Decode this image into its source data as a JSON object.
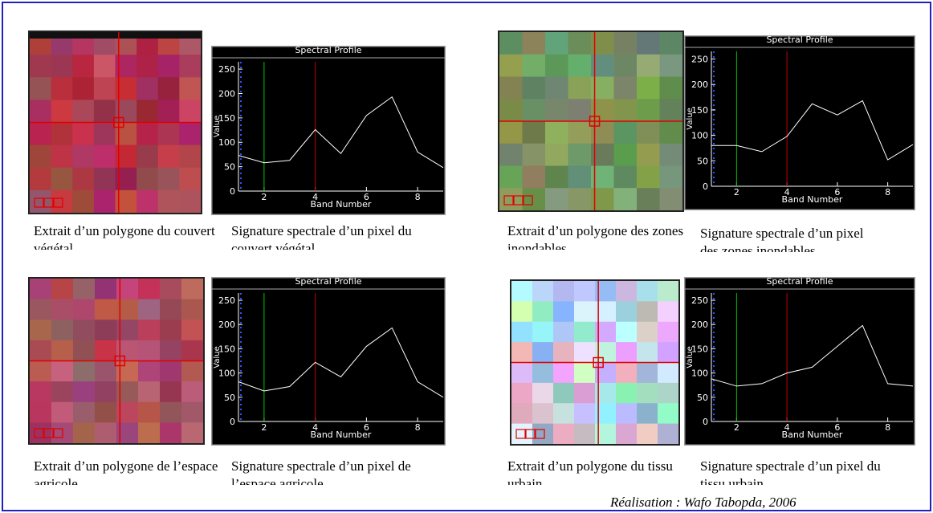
{
  "chart_data": [
    {
      "type": "line",
      "title": "Spectral Profile",
      "xlabel": "Band Number",
      "ylabel": "Value",
      "x": [
        1,
        2,
        3,
        4,
        5,
        6,
        7,
        8,
        9
      ],
      "series": [
        {
          "color": "#ffffff",
          "values": [
            73,
            58,
            63,
            126,
            77,
            155,
            193,
            80,
            48
          ]
        }
      ],
      "band_lines": [
        {
          "value": 2,
          "color": "#00c000"
        },
        {
          "value": 4,
          "color": "#c00000"
        }
      ],
      "xlim": [
        1,
        9
      ],
      "xticks": [
        2,
        4,
        6,
        8
      ],
      "ylim": [
        0,
        265
      ],
      "yticks": [
        0,
        50,
        100,
        150,
        200,
        250
      ]
    },
    {
      "type": "line",
      "title": "Spectral Profile",
      "xlabel": "Band Number",
      "ylabel": "Value",
      "x": [
        1,
        2,
        3,
        4,
        5,
        6,
        7,
        8,
        9
      ],
      "series": [
        {
          "color": "#ffffff",
          "values": [
            80,
            80,
            68,
            98,
            162,
            140,
            168,
            52,
            82
          ]
        }
      ],
      "band_lines": [
        {
          "value": 2,
          "color": "#00c000"
        },
        {
          "value": 4,
          "color": "#c00000"
        }
      ],
      "xlim": [
        1,
        9
      ],
      "xticks": [
        2,
        4,
        6,
        8
      ],
      "ylim": [
        0,
        265
      ],
      "yticks": [
        0,
        50,
        100,
        150,
        200,
        250
      ]
    },
    {
      "type": "line",
      "title": "Spectral Profile",
      "xlabel": "Band Number",
      "ylabel": "Value",
      "x": [
        1,
        2,
        3,
        4,
        5,
        6,
        7,
        8,
        9
      ],
      "series": [
        {
          "color": "#ffffff",
          "values": [
            82,
            63,
            72,
            122,
            92,
            155,
            193,
            82,
            50
          ]
        }
      ],
      "band_lines": [
        {
          "value": 2,
          "color": "#00c000"
        },
        {
          "value": 4,
          "color": "#c00000"
        }
      ],
      "xlim": [
        1,
        9
      ],
      "xticks": [
        2,
        4,
        6,
        8
      ],
      "ylim": [
        0,
        265
      ],
      "yticks": [
        0,
        50,
        100,
        150,
        200,
        250
      ]
    },
    {
      "type": "line",
      "title": "Spectral Profile",
      "xlabel": "Band Number",
      "ylabel": "Value",
      "x": [
        1,
        2,
        3,
        4,
        5,
        6,
        7,
        8,
        9
      ],
      "series": [
        {
          "color": "#ffffff",
          "values": [
            88,
            73,
            78,
            100,
            112,
            155,
            198,
            78,
            73
          ]
        }
      ],
      "band_lines": [
        {
          "value": 2,
          "color": "#00c000"
        },
        {
          "value": 4,
          "color": "#c00000"
        }
      ],
      "xlim": [
        1,
        9
      ],
      "xticks": [
        2,
        4,
        6,
        8
      ],
      "ylim": [
        0,
        265
      ],
      "yticks": [
        0,
        50,
        100,
        150,
        200,
        250
      ]
    }
  ],
  "captions": [
    {
      "image": "Extrait d’un polygone du couvert végétal",
      "profile": "Signature spectrale d’un pixel du couvert végétal"
    },
    {
      "image": "Extrait d’un polygone des zones inondables",
      "profile": "Signature spectrale d’un pixel des zones inondables"
    },
    {
      "image": "Extrait d’un polygone de l’espace agricole",
      "profile": "Signature spectrale d’un pixel de l’espace agricole"
    },
    {
      "image": "Extrait d’un polygone du tissu urbain",
      "profile": "Signature spectrale d’un pixel du tissu urbain"
    }
  ],
  "credit": "Réalisation : Wafo Tabopda, 2006"
}
